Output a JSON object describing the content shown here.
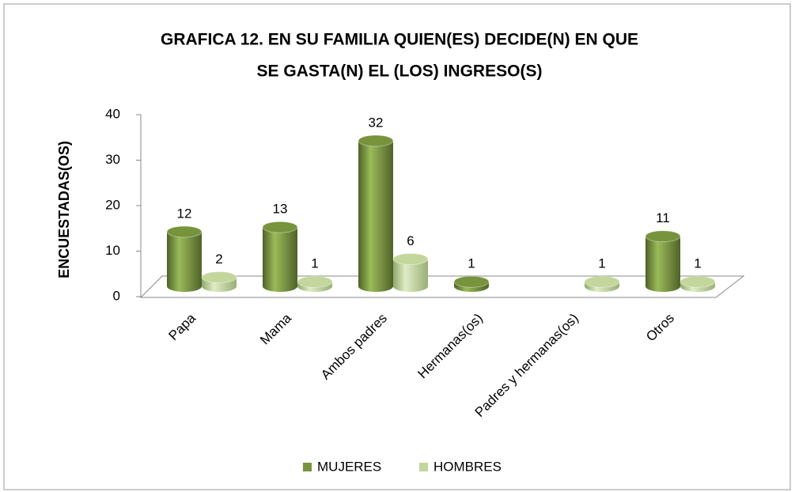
{
  "chart_data": {
    "type": "bar3d",
    "title": [
      "GRAFICA 12. EN SU FAMILIA QUIEN(ES) DECIDE(N) EN QUE",
      "SE GASTA(N) EL (LOS) INGRESO(S)"
    ],
    "y_label": "ENCUESTADAS(OS)",
    "categories": [
      "Papa",
      "Mama",
      "Ambos padres",
      "Hermanas(os)",
      "Padres y hermanas(os)",
      "Otros"
    ],
    "series": [
      {
        "name": "MUJERES",
        "color": "#77933c",
        "values": [
          12,
          13,
          32,
          1,
          null,
          11
        ]
      },
      {
        "name": "HOMBRES",
        "color": "#c3d69b",
        "values": [
          2,
          1,
          6,
          null,
          1,
          1
        ]
      }
    ],
    "ylim": [
      0,
      40
    ],
    "yticks": [
      0,
      10,
      20,
      30,
      40
    ],
    "legend": "bottom"
  }
}
